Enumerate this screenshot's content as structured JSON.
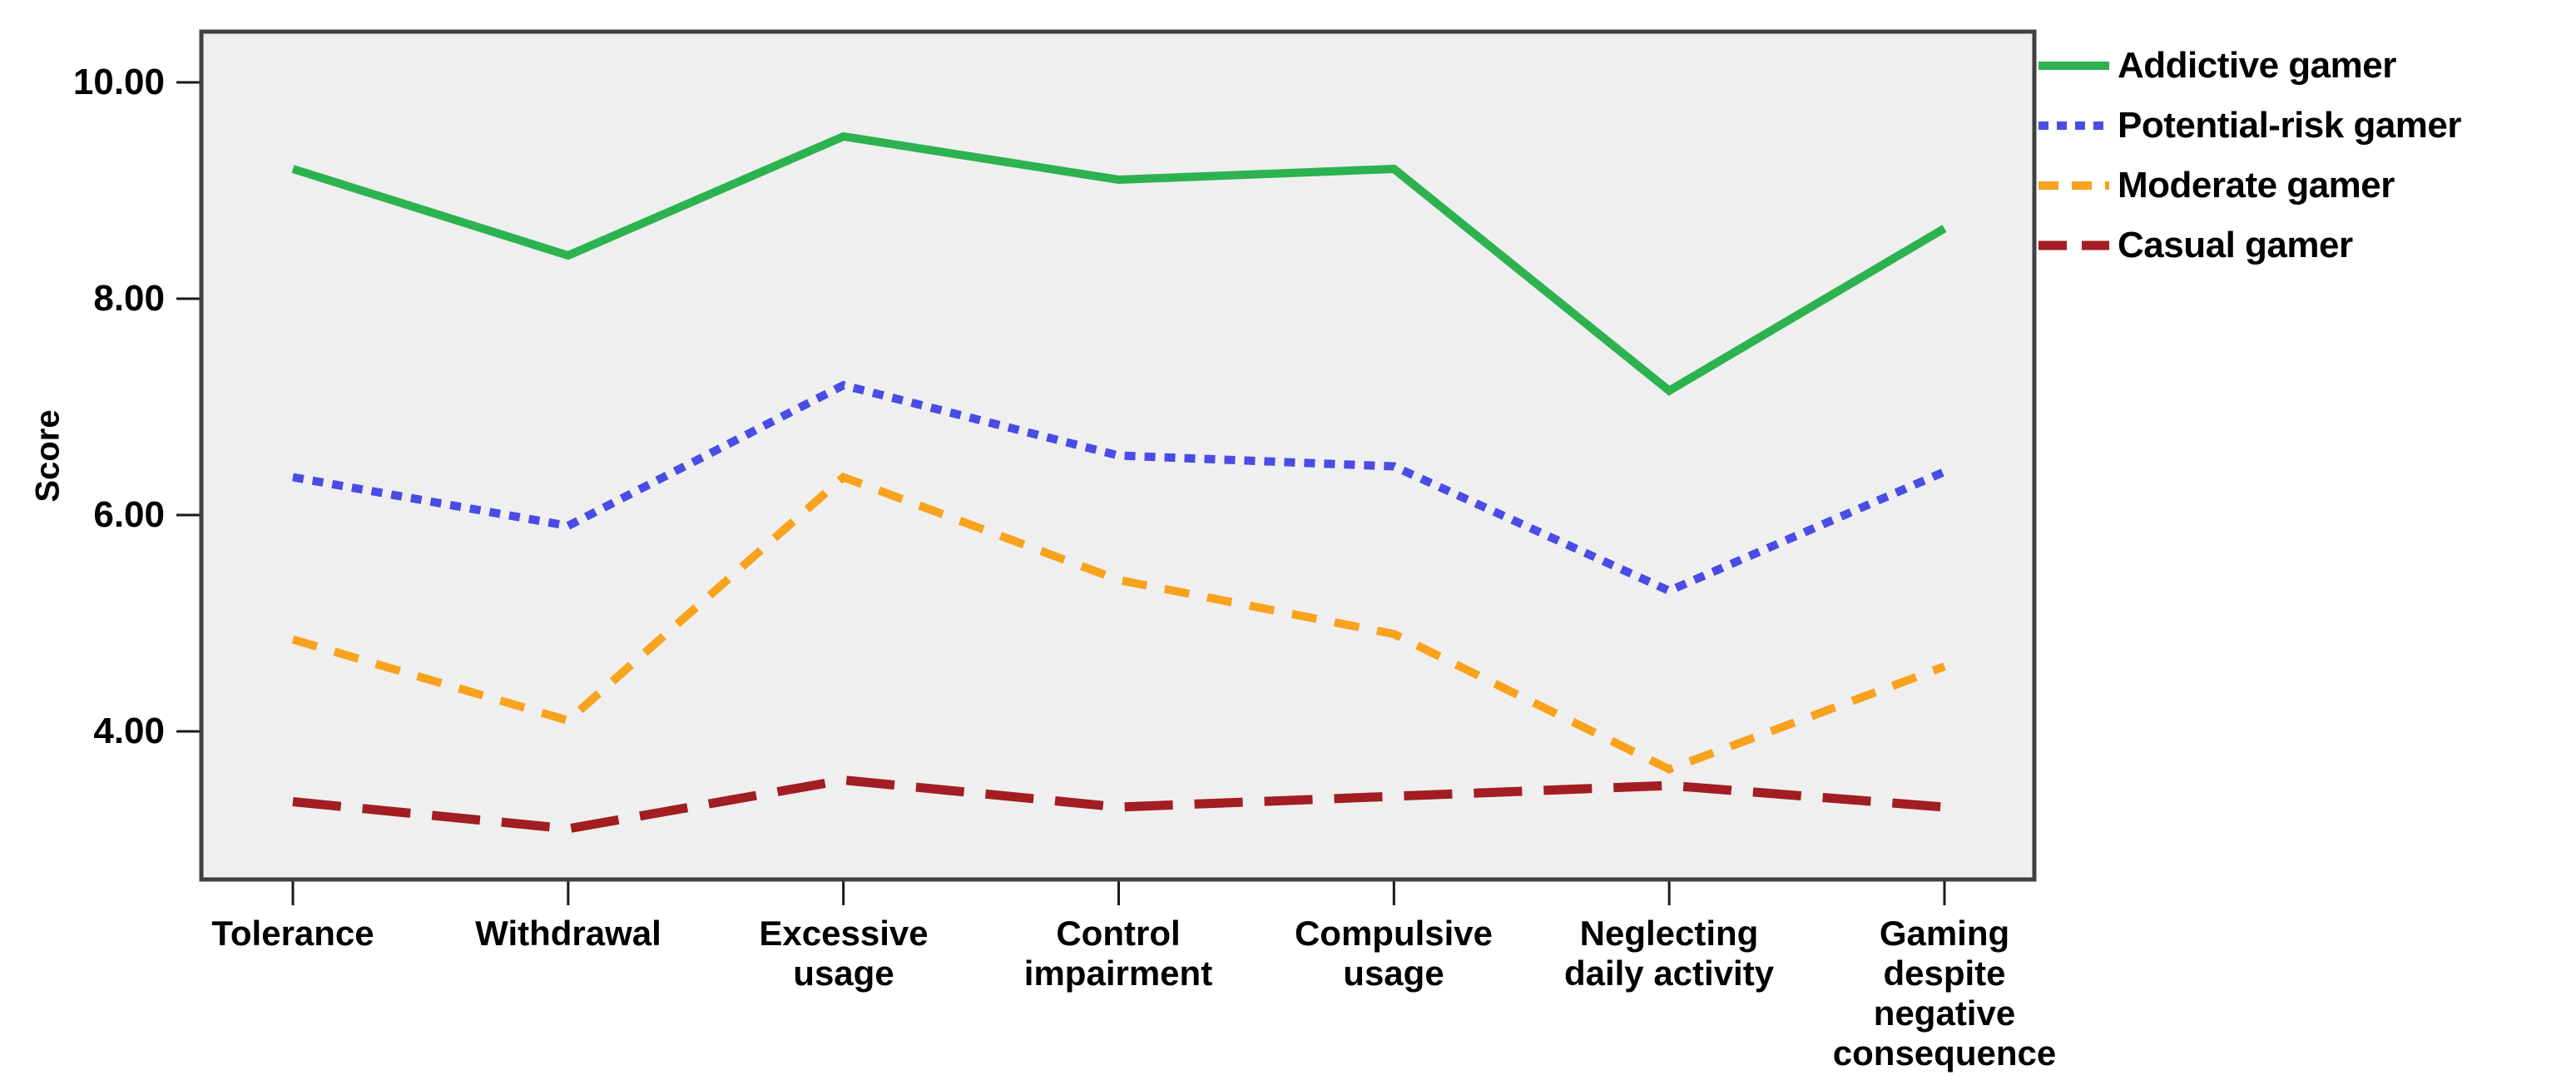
{
  "chart_data": {
    "type": "line",
    "title": "",
    "xlabel": "",
    "ylabel": "Score",
    "grid": false,
    "legend_position": "top-right-outside",
    "plot_background": "#EFEFEF",
    "frame_color": "#404040",
    "ylim": [
      2.6,
      10.5
    ],
    "y_ticks": [
      {
        "label": "10.00",
        "value": 10
      },
      {
        "label": "8.00",
        "value": 8
      },
      {
        "label": "6.00",
        "value": 6
      },
      {
        "label": "4.00",
        "value": 4
      }
    ],
    "categories": [
      "Tolerance",
      "Withdrawal",
      "Excessive\nusage",
      "Control\nimpairment",
      "Compulsive\nusage",
      "Neglecting\ndaily activity",
      "Gaming\ndespite\nnegative\nconsequence"
    ],
    "series": [
      {
        "name": "Addictive gamer",
        "line_style": "solid",
        "color": "#2DB250",
        "values": [
          9.2,
          8.4,
          9.5,
          9.1,
          9.2,
          7.15,
          8.65
        ]
      },
      {
        "name": "Potential-risk gamer",
        "line_style": "dotted",
        "color": "#4B4BE6",
        "values": [
          6.35,
          5.9,
          7.2,
          6.55,
          6.45,
          5.3,
          6.4
        ]
      },
      {
        "name": "Moderate gamer",
        "line_style": "dashed",
        "color": "#F9A21D",
        "values": [
          4.85,
          4.1,
          6.35,
          5.4,
          4.9,
          3.65,
          4.6
        ]
      },
      {
        "name": "Casual gamer",
        "line_style": "long-dash",
        "color": "#A21E22",
        "values": [
          3.35,
          3.1,
          3.55,
          3.3,
          3.4,
          3.5,
          3.3
        ]
      }
    ]
  }
}
